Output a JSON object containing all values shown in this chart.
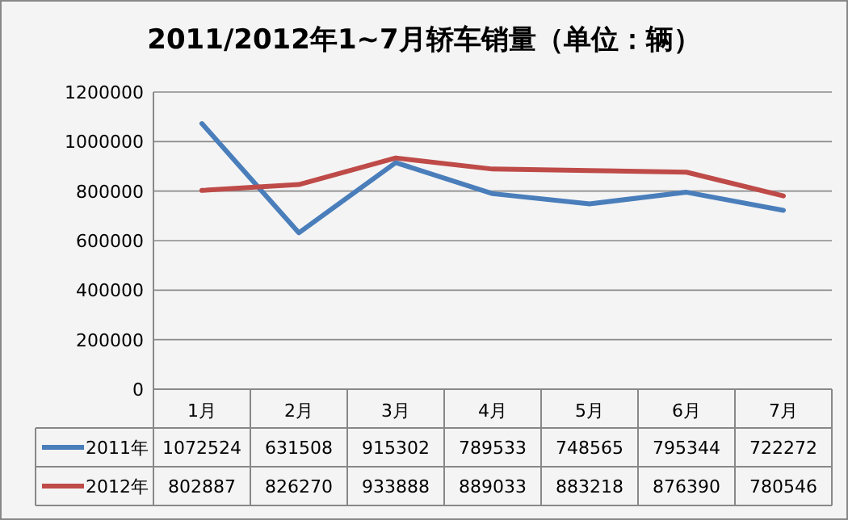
{
  "chart_data": {
    "type": "line",
    "title": "2011/2012年1~7月轿车销量（单位：辆）",
    "categories": [
      "1月",
      "2月",
      "3月",
      "4月",
      "5月",
      "6月",
      "7月"
    ],
    "series": [
      {
        "name": "2011年",
        "color": "#4a7ebb",
        "values": [
          1072524,
          631508,
          915302,
          789533,
          748565,
          795344,
          722272
        ]
      },
      {
        "name": "2012年",
        "color": "#be4b48",
        "values": [
          802887,
          826270,
          933888,
          889033,
          883218,
          876390,
          780546
        ]
      }
    ],
    "ylim": [
      0,
      1200000
    ],
    "yticks": [
      0,
      200000,
      400000,
      600000,
      800000,
      1000000,
      1200000
    ],
    "grid": "y",
    "legend": "bottom",
    "data_labels": true,
    "marker": "none",
    "line_style": "solid"
  }
}
